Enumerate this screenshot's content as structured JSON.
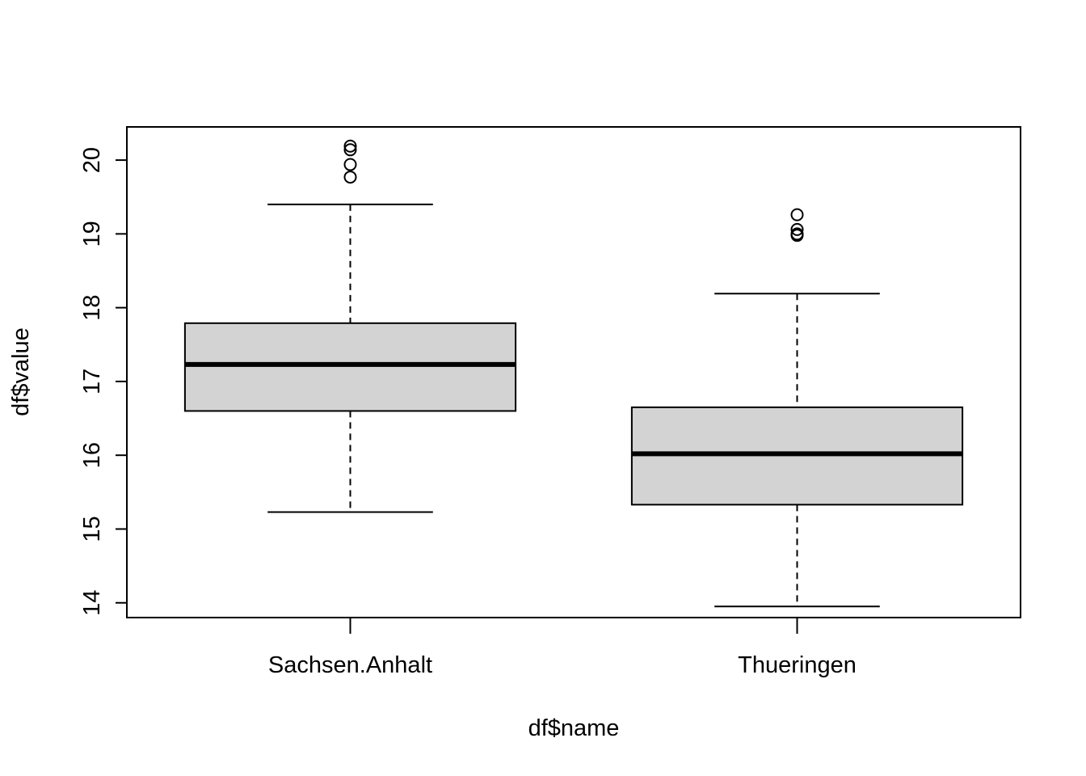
{
  "chart_data": {
    "type": "boxplot",
    "title": "",
    "xlabel": "df$name",
    "ylabel": "df$value",
    "ylim": [
      13.8,
      20.45
    ],
    "y_ticks": [
      "14",
      "15",
      "16",
      "17",
      "18",
      "19",
      "20"
    ],
    "grid": false,
    "legend": "none",
    "colors": {
      "box_fill": "#d3d3d3",
      "stroke": "#000000",
      "background": "#ffffff"
    },
    "categories": [
      "Sachsen.Anhalt",
      "Thueringen"
    ],
    "boxes": [
      {
        "category": "Sachsen.Anhalt",
        "whisker_low": 15.23,
        "q1": 16.6,
        "median": 17.23,
        "q3": 17.79,
        "whisker_high": 19.4,
        "outliers": [
          19.77,
          19.94,
          20.14,
          20.19
        ]
      },
      {
        "category": "Thueringen",
        "whisker_low": 13.95,
        "q1": 15.33,
        "median": 16.02,
        "q3": 16.65,
        "whisker_high": 18.19,
        "outliers": [
          18.98,
          19.0,
          19.06,
          19.26
        ]
      }
    ]
  }
}
